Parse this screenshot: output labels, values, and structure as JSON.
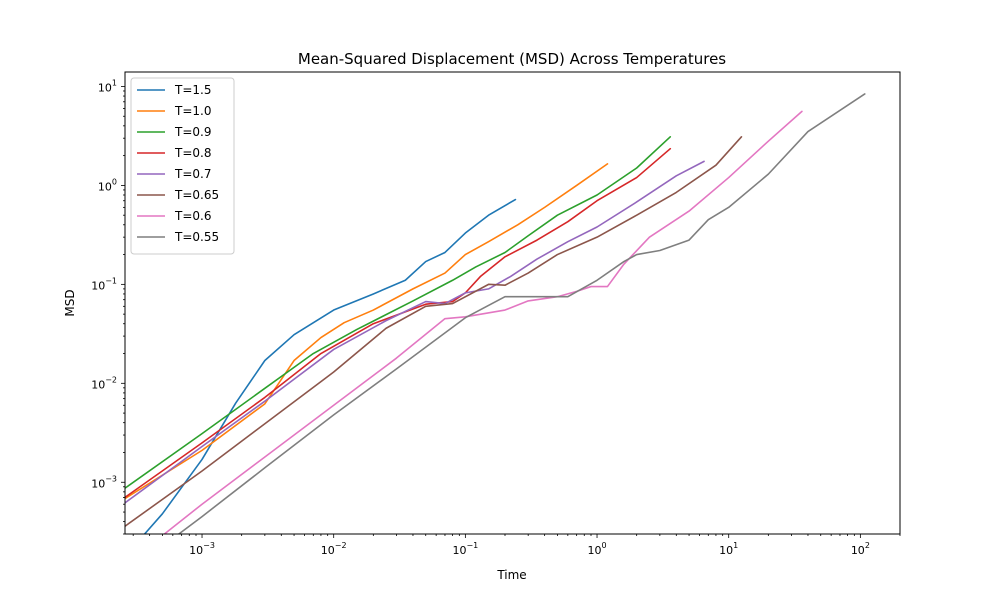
{
  "chart_data": {
    "type": "line",
    "title": "Mean-Squared Displacement (MSD) Across Temperatures",
    "xlabel": "Time",
    "ylabel": "MSD",
    "xscale": "log",
    "yscale": "log",
    "xlim": [
      0.00026,
      200
    ],
    "ylim": [
      0.0003,
      14
    ],
    "legend": "upper left",
    "grid": false,
    "xticks": [
      {
        "value": 0.001,
        "base": "10",
        "exp": "−3"
      },
      {
        "value": 0.01,
        "base": "10",
        "exp": "−2"
      },
      {
        "value": 0.1,
        "base": "10",
        "exp": "−1"
      },
      {
        "value": 1,
        "base": "10",
        "exp": "0"
      },
      {
        "value": 10,
        "base": "10",
        "exp": "1"
      },
      {
        "value": 100,
        "base": "10",
        "exp": "2"
      }
    ],
    "yticks": [
      {
        "value": 0.001,
        "base": "10",
        "exp": "−3"
      },
      {
        "value": 0.01,
        "base": "10",
        "exp": "−2"
      },
      {
        "value": 0.1,
        "base": "10",
        "exp": "−1"
      },
      {
        "value": 1,
        "base": "10",
        "exp": "0"
      },
      {
        "value": 10,
        "base": "10",
        "exp": "1"
      }
    ],
    "series": [
      {
        "name": "T=1.5",
        "color": "#1f77b4",
        "x": [
          0.0002,
          0.0005,
          0.001,
          0.0018,
          0.003,
          0.005,
          0.01,
          0.02,
          0.035,
          0.05,
          0.07,
          0.1,
          0.15,
          0.24
        ],
        "y": [
          0.00012,
          0.00048,
          0.0017,
          0.0063,
          0.017,
          0.031,
          0.055,
          0.08,
          0.11,
          0.17,
          0.21,
          0.33,
          0.5,
          0.72
        ]
      },
      {
        "name": "T=1.0",
        "color": "#ff7f0e",
        "x": [
          0.0002,
          0.001,
          0.003,
          0.005,
          0.008,
          0.012,
          0.02,
          0.04,
          0.07,
          0.1,
          0.15,
          0.25,
          0.4,
          0.7,
          1.2
        ],
        "y": [
          0.00055,
          0.0021,
          0.0062,
          0.017,
          0.029,
          0.041,
          0.055,
          0.09,
          0.13,
          0.2,
          0.27,
          0.4,
          0.6,
          1.0,
          1.65
        ]
      },
      {
        "name": "T=0.9",
        "color": "#2ca02c",
        "x": [
          0.0002,
          0.001,
          0.003,
          0.007,
          0.015,
          0.04,
          0.08,
          0.12,
          0.2,
          0.3,
          0.5,
          1.0,
          2.0,
          3.6
        ],
        "y": [
          0.00068,
          0.0031,
          0.0089,
          0.02,
          0.035,
          0.068,
          0.11,
          0.15,
          0.21,
          0.31,
          0.5,
          0.8,
          1.5,
          3.1
        ]
      },
      {
        "name": "T=0.8",
        "color": "#d62728",
        "x": [
          0.0002,
          0.001,
          0.003,
          0.008,
          0.02,
          0.05,
          0.08,
          0.1,
          0.13,
          0.2,
          0.35,
          0.6,
          1.0,
          2.0,
          3.6
        ],
        "y": [
          0.00055,
          0.0025,
          0.0072,
          0.02,
          0.04,
          0.063,
          0.067,
          0.082,
          0.12,
          0.19,
          0.28,
          0.43,
          0.7,
          1.2,
          2.35
        ]
      },
      {
        "name": "T=0.7",
        "color": "#9467bd",
        "x": [
          0.0002,
          0.001,
          0.003,
          0.01,
          0.025,
          0.05,
          0.07,
          0.1,
          0.15,
          0.22,
          0.35,
          0.6,
          1.0,
          2.0,
          4.0,
          6.5
        ],
        "y": [
          0.00048,
          0.0023,
          0.0066,
          0.022,
          0.043,
          0.067,
          0.064,
          0.082,
          0.09,
          0.12,
          0.18,
          0.27,
          0.38,
          0.68,
          1.25,
          1.75
        ]
      },
      {
        "name": "T=0.65",
        "color": "#8c564b",
        "x": [
          0.0002,
          0.001,
          0.003,
          0.01,
          0.025,
          0.05,
          0.08,
          0.15,
          0.2,
          0.3,
          0.5,
          1.0,
          2.0,
          4.0,
          8.0,
          12.5
        ],
        "y": [
          0.00028,
          0.0013,
          0.0039,
          0.013,
          0.036,
          0.06,
          0.064,
          0.1,
          0.098,
          0.13,
          0.2,
          0.3,
          0.5,
          0.85,
          1.6,
          3.1
        ]
      },
      {
        "name": "T=0.6",
        "color": "#e377c2",
        "x": [
          0.0002,
          0.001,
          0.003,
          0.01,
          0.03,
          0.07,
          0.1,
          0.2,
          0.3,
          0.5,
          0.7,
          0.9,
          1.2,
          1.6,
          2.5,
          5.0,
          10.0,
          20.0,
          36.0
        ],
        "y": [
          0.00011,
          0.0006,
          0.0018,
          0.006,
          0.018,
          0.045,
          0.047,
          0.055,
          0.068,
          0.075,
          0.085,
          0.095,
          0.095,
          0.16,
          0.3,
          0.55,
          1.2,
          2.8,
          5.6
        ]
      },
      {
        "name": "T=0.55",
        "color": "#7f7f7f",
        "x": [
          0.0002,
          0.001,
          0.003,
          0.01,
          0.03,
          0.1,
          0.2,
          0.3,
          0.6,
          1.0,
          1.6,
          2.0,
          3.0,
          5.0,
          7.0,
          10.0,
          20.0,
          40.0,
          108.0
        ],
        "y": [
          9e-05,
          0.00045,
          0.0014,
          0.0048,
          0.014,
          0.046,
          0.075,
          0.075,
          0.075,
          0.11,
          0.17,
          0.2,
          0.22,
          0.28,
          0.45,
          0.6,
          1.3,
          3.5,
          8.4
        ]
      }
    ]
  }
}
